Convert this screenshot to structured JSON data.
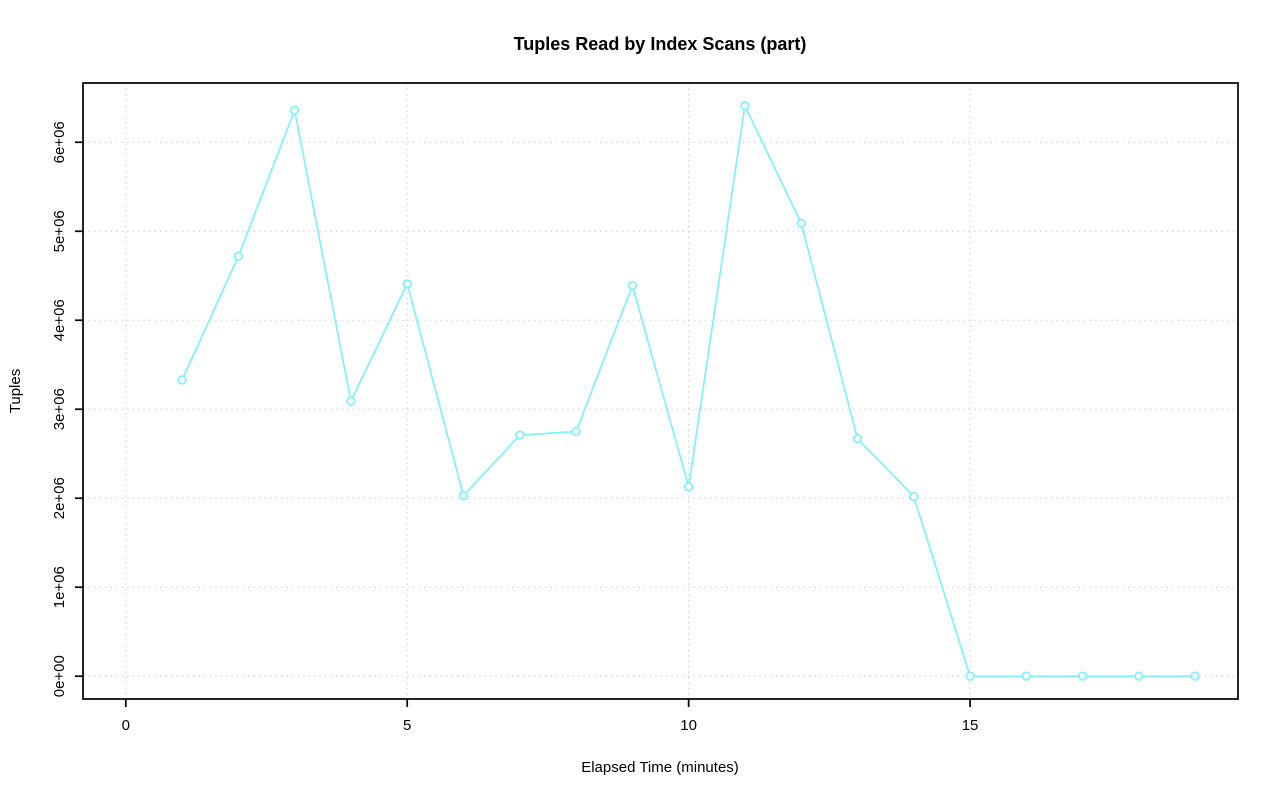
{
  "chart_data": {
    "type": "line",
    "title": "Tuples Read by Index Scans (part)",
    "xlabel": "Elapsed Time (minutes)",
    "ylabel": "Tuples",
    "x": [
      1,
      2,
      3,
      4,
      5,
      6,
      7,
      8,
      9,
      10,
      11,
      12,
      13,
      14,
      15,
      16,
      17,
      18,
      19
    ],
    "values": [
      3330000,
      4720000,
      6360000,
      3090000,
      4410000,
      2030000,
      2710000,
      2750000,
      4390000,
      2130000,
      6410000,
      5090000,
      2670000,
      2020000,
      0,
      0,
      0,
      0,
      0
    ],
    "series": [
      {
        "name": "part",
        "marker": "open-circle",
        "line_type": "solid"
      }
    ],
    "x_ticks": {
      "values": [
        0,
        5,
        10,
        15
      ],
      "labels": [
        "0",
        "5",
        "10",
        "15"
      ]
    },
    "y_ticks": {
      "values": [
        0,
        1000000,
        2000000,
        3000000,
        4000000,
        5000000,
        6000000
      ],
      "labels": [
        "0e+00",
        "1e+06",
        "2e+06",
        "3e+06",
        "4e+06",
        "5e+06",
        "6e+06"
      ]
    },
    "xlim": [
      -0.76,
      19.76
    ],
    "ylim": [
      -256000,
      6666000
    ],
    "grid": true,
    "grid_style": "dotted",
    "legend": "none",
    "colors": {
      "series": "#7df2fa",
      "grid": "#cbcbcb",
      "axis": "#000000",
      "background": "#ffffff"
    }
  }
}
